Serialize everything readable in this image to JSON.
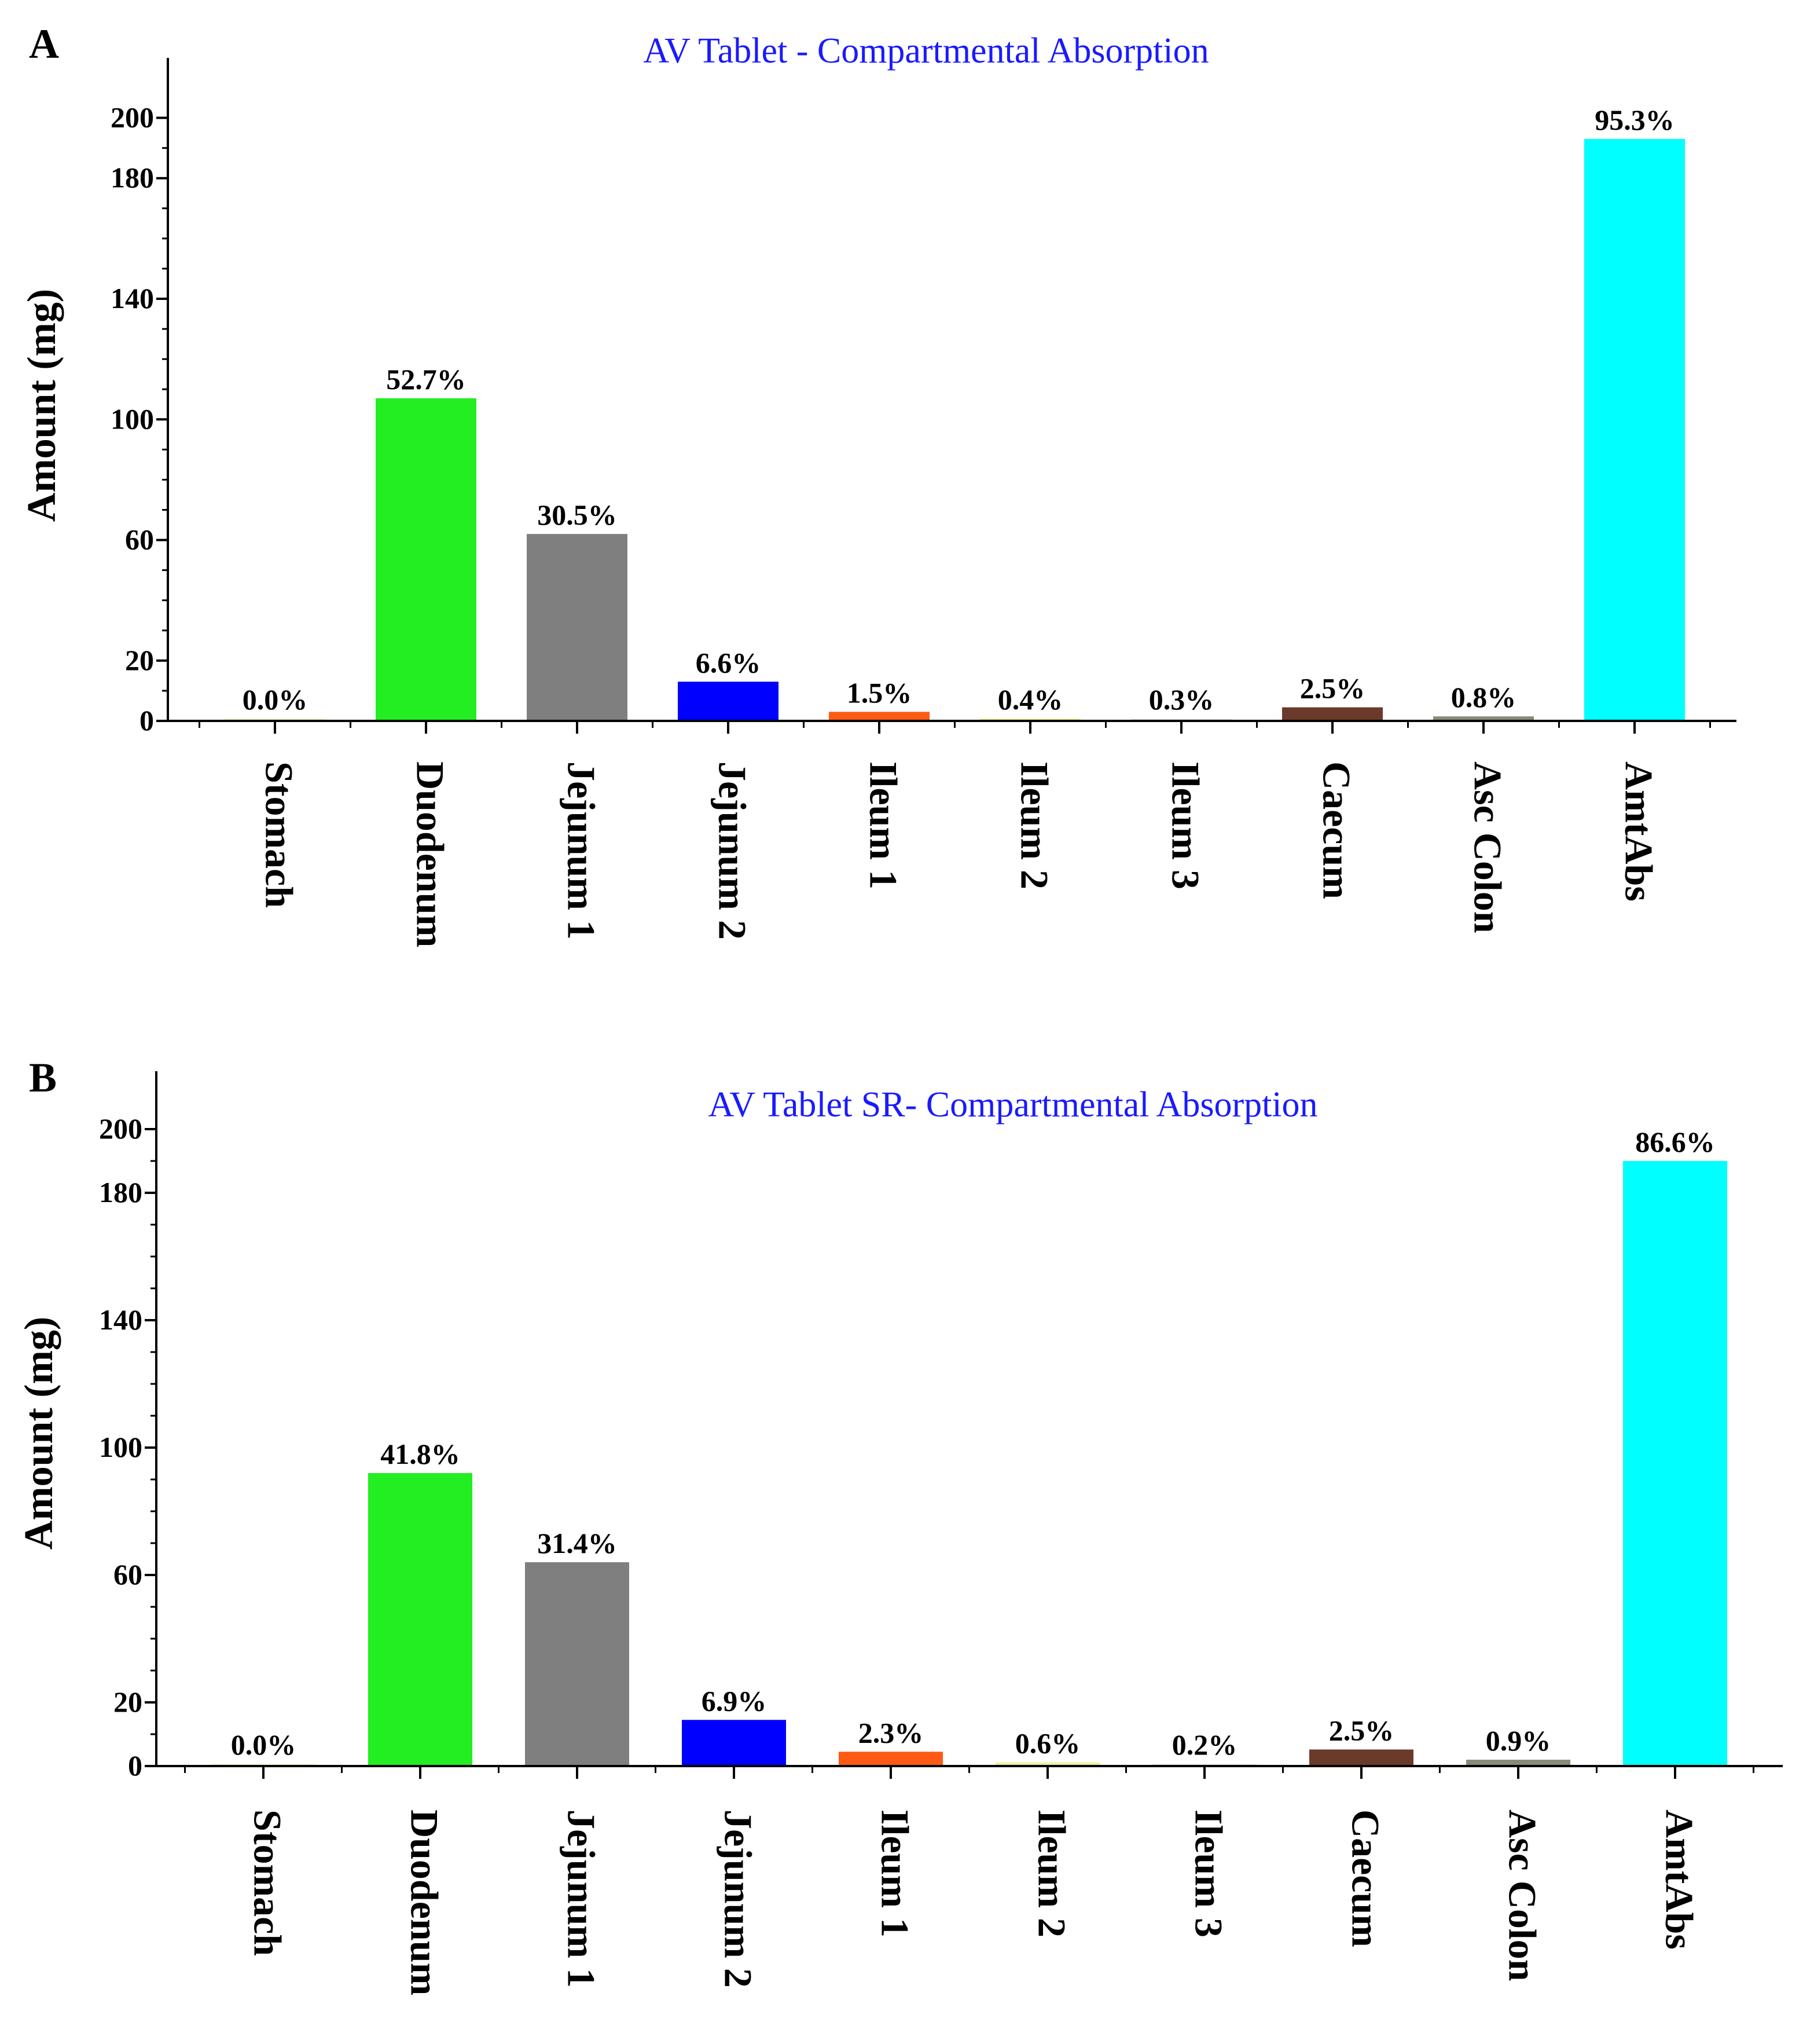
{
  "chart_data": [
    {
      "panel": "A",
      "type": "bar",
      "title": "AV Tablet - Compartmental Absorption",
      "title_color": "#1a1aff",
      "xlabel": "",
      "ylabel": "Amount (mg)",
      "ylim": [
        0,
        220
      ],
      "yticks": [
        "0",
        "20",
        "60",
        "100",
        "140",
        "180",
        "200"
      ],
      "categories": [
        "Stomach",
        "Duodenum",
        "Jejunum 1",
        "Jejunum 2",
        "Ileum 1",
        "Ileum 2",
        "Ileum 3",
        "Caecum",
        "Asc Colon",
        "AmtAbs"
      ],
      "values": [
        0.0,
        107,
        62,
        13,
        3,
        0.8,
        0.6,
        4.5,
        1.5,
        193
      ],
      "data_labels": [
        "0.0%",
        "52.7%",
        "30.5%",
        "6.6%",
        "1.5%",
        "0.4%",
        "0.3%",
        "2.5%",
        "0.8%",
        "95.3%"
      ],
      "colors": [
        "#f5f5d0",
        "#22ee22",
        "#7f7f7f",
        "#0000ff",
        "#ff5a14",
        "#f0f0a0",
        "#e8e8e8",
        "#6b3a2a",
        "#8a8a78",
        "#00ffff"
      ]
    },
    {
      "panel": "B",
      "type": "bar",
      "title": "AV Tablet SR- Compartmental Absorption",
      "title_color": "#1a1aff",
      "xlabel": "",
      "ylabel": "Amount (mg)",
      "ylim": [
        0,
        220
      ],
      "yticks": [
        "0",
        "20",
        "60",
        "100",
        "140",
        "180",
        "200"
      ],
      "categories": [
        "Stomach",
        "Duodenum",
        "Jejunum 1",
        "Jejunum 2",
        "Ileum 1",
        "Ileum 2",
        "Ileum 3",
        "Caecum",
        "Asc Colon",
        "AmtAbs"
      ],
      "values": [
        0.0,
        92,
        64,
        14.5,
        4.5,
        1.2,
        0.4,
        5.2,
        2,
        190
      ],
      "data_labels": [
        "0.0%",
        "41.8%",
        "31.4%",
        "6.9%",
        "2.3%",
        "0.6%",
        "0.2%",
        "2.5%",
        "0.9%",
        "86.6%"
      ],
      "colors": [
        "#f5f5d0",
        "#22ee22",
        "#7f7f7f",
        "#0000ff",
        "#ff5a14",
        "#f0f0a0",
        "#e8e8e8",
        "#6b3a2a",
        "#8a8a78",
        "#00ffff"
      ]
    }
  ]
}
